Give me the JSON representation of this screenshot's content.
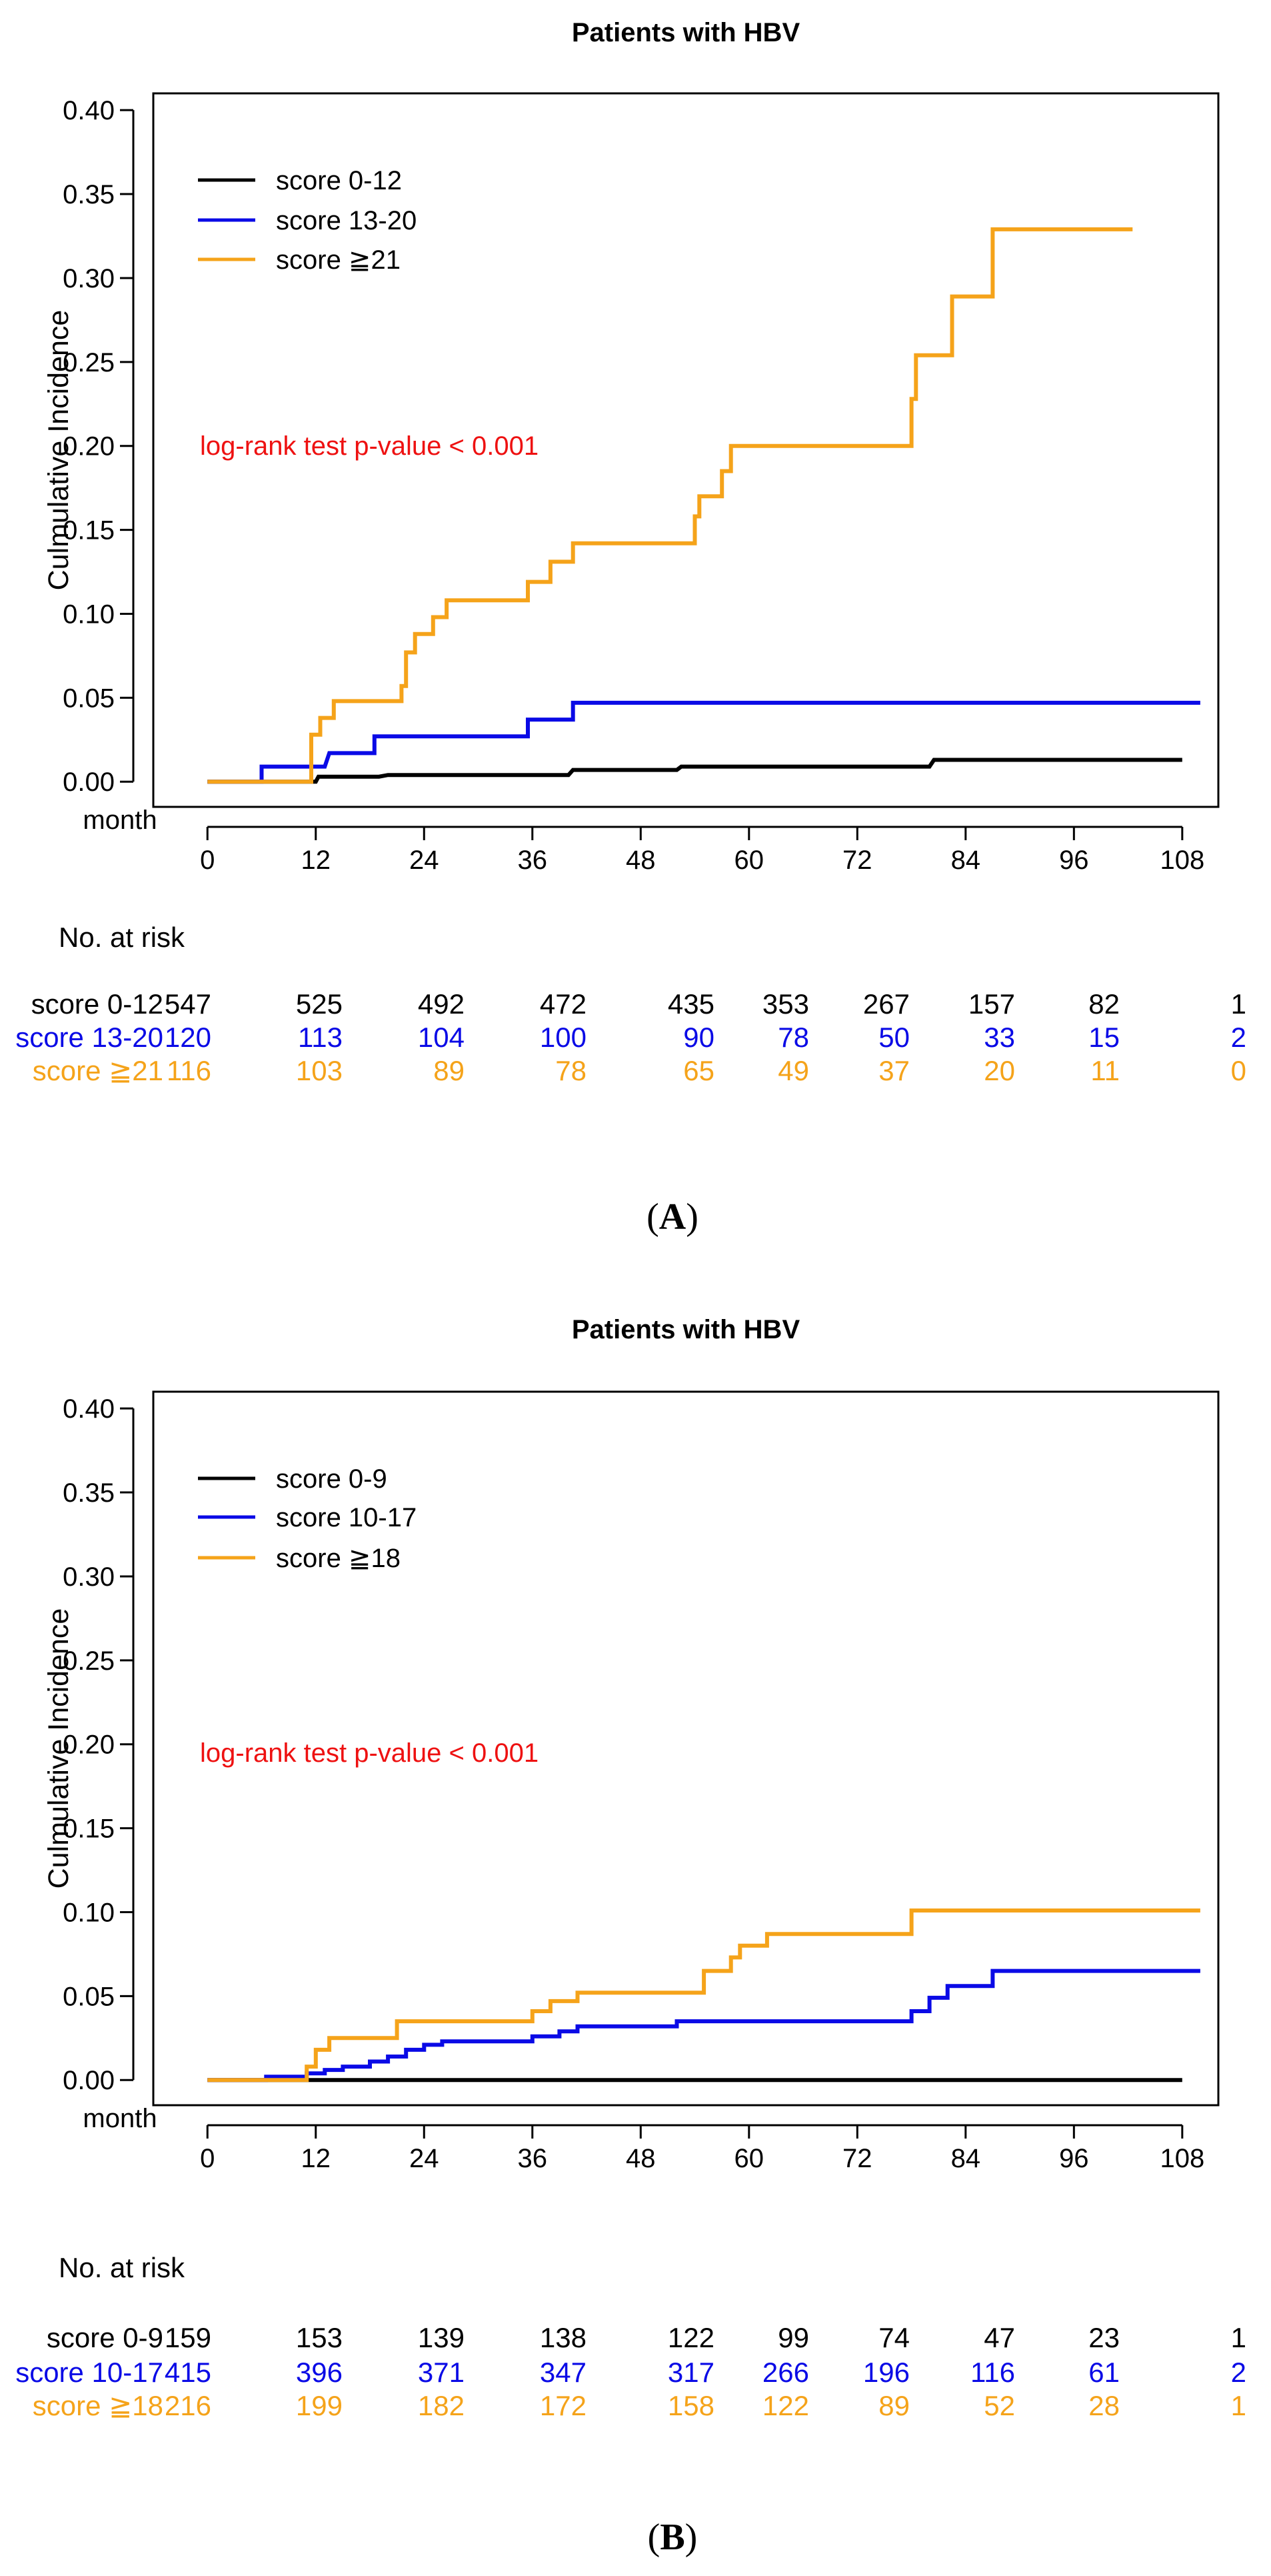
{
  "colors": {
    "black": "#000000",
    "blue": "#0a0ae6",
    "orange": "#f5a31a",
    "annotation": "#ee1111"
  },
  "chart_data": [
    {
      "type": "line",
      "panel": "A",
      "caption": [
        "(",
        "A",
        ")"
      ],
      "title": "Patients with HBV",
      "xlabel": "month",
      "ylabel": "Culmulative Incidence",
      "xlim": [
        -6,
        112
      ],
      "ylim": [
        -0.015,
        0.41
      ],
      "xticks": [
        0,
        12,
        24,
        36,
        48,
        60,
        72,
        84,
        96,
        108
      ],
      "yticks": [
        "0.00",
        "0.05",
        "0.10",
        "0.15",
        "0.20",
        "0.25",
        "0.30",
        "0.35",
        "0.40"
      ],
      "annotation": "log-rank test p-value < 0.001",
      "risk_title": "No. at risk",
      "series": [
        {
          "name": "score 0-12",
          "color": "black",
          "steps": [
            [
              0,
              0
            ],
            [
              12,
              0
            ],
            [
              12.3,
              0.003
            ],
            [
              19,
              0.003
            ],
            [
              20,
              0.004
            ],
            [
              40,
              0.004
            ],
            [
              40.5,
              0.007
            ],
            [
              52,
              0.007
            ],
            [
              52.5,
              0.009
            ],
            [
              80,
              0.009
            ],
            [
              80.5,
              0.013
            ],
            [
              108,
              0.013
            ]
          ]
        },
        {
          "name": "score 13-20",
          "color": "blue",
          "steps": [
            [
              0,
              0
            ],
            [
              6,
              0
            ],
            [
              6,
              0.009
            ],
            [
              13,
              0.009
            ],
            [
              13.5,
              0.017
            ],
            [
              18.5,
              0.017
            ],
            [
              18.5,
              0.027
            ],
            [
              35.5,
              0.027
            ],
            [
              35.5,
              0.037
            ],
            [
              40.5,
              0.037
            ],
            [
              40.5,
              0.047
            ],
            [
              110,
              0.047
            ]
          ]
        },
        {
          "name": "score ≧21",
          "color": "orange",
          "steps": [
            [
              0,
              0
            ],
            [
              11.5,
              0
            ],
            [
              11.5,
              0.028
            ],
            [
              12.5,
              0.028
            ],
            [
              12.5,
              0.038
            ],
            [
              14,
              0.038
            ],
            [
              14,
              0.048
            ],
            [
              21.5,
              0.048
            ],
            [
              21.5,
              0.057
            ],
            [
              22,
              0.057
            ],
            [
              22,
              0.077
            ],
            [
              23,
              0.077
            ],
            [
              23,
              0.088
            ],
            [
              25,
              0.088
            ],
            [
              25,
              0.098
            ],
            [
              26.5,
              0.098
            ],
            [
              26.5,
              0.108
            ],
            [
              35.5,
              0.108
            ],
            [
              35.5,
              0.119
            ],
            [
              38,
              0.119
            ],
            [
              38,
              0.131
            ],
            [
              40.5,
              0.131
            ],
            [
              40.5,
              0.142
            ],
            [
              54,
              0.142
            ],
            [
              54,
              0.158
            ],
            [
              54.5,
              0.158
            ],
            [
              54.5,
              0.17
            ],
            [
              57,
              0.17
            ],
            [
              57,
              0.185
            ],
            [
              58,
              0.185
            ],
            [
              58,
              0.2
            ],
            [
              78,
              0.2
            ],
            [
              78,
              0.228
            ],
            [
              78.5,
              0.228
            ],
            [
              78.5,
              0.254
            ],
            [
              82.5,
              0.254
            ],
            [
              82.5,
              0.289
            ],
            [
              87,
              0.289
            ],
            [
              87,
              0.329
            ],
            [
              102.5,
              0.329
            ]
          ]
        }
      ],
      "risk_table": [
        {
          "label": "score 0-12",
          "color": "black",
          "values": [
            "547",
            "525",
            "492",
            "472",
            "435",
            "353",
            "267",
            "157",
            "82",
            "1"
          ]
        },
        {
          "label": "score 13-20",
          "color": "blue",
          "values": [
            "120",
            "113",
            "104",
            "100",
            "90",
            "78",
            "50",
            "33",
            "15",
            "2"
          ]
        },
        {
          "label": "score ≧21",
          "color": "orange",
          "values": [
            "116",
            "103",
            "89",
            "78",
            "65",
            "49",
            "37",
            "20",
            "11",
            "0"
          ]
        }
      ]
    },
    {
      "type": "line",
      "panel": "B",
      "caption": [
        "(",
        "B",
        ")"
      ],
      "title": "Patients with HBV",
      "xlabel": "month",
      "ylabel": "Culmulative Incidence",
      "xlim": [
        -6,
        112
      ],
      "ylim": [
        -0.015,
        0.41
      ],
      "xticks": [
        0,
        12,
        24,
        36,
        48,
        60,
        72,
        84,
        96,
        108
      ],
      "yticks": [
        "0.00",
        "0.05",
        "0.10",
        "0.15",
        "0.20",
        "0.25",
        "0.30",
        "0.35",
        "0.40"
      ],
      "annotation": "log-rank test p-value < 0.001",
      "risk_title": "No. at risk",
      "series": [
        {
          "name": "score 0-9",
          "color": "black",
          "steps": [
            [
              0,
              0
            ],
            [
              108,
              0
            ]
          ]
        },
        {
          "name": "score 10-17",
          "color": "blue",
          "steps": [
            [
              0,
              0
            ],
            [
              6.5,
              0
            ],
            [
              6.5,
              0.002
            ],
            [
              11,
              0.002
            ],
            [
              11,
              0.004
            ],
            [
              13,
              0.004
            ],
            [
              13,
              0.006
            ],
            [
              15,
              0.006
            ],
            [
              15,
              0.008
            ],
            [
              18,
              0.008
            ],
            [
              18,
              0.011
            ],
            [
              20,
              0.011
            ],
            [
              20,
              0.014
            ],
            [
              22,
              0.014
            ],
            [
              22,
              0.018
            ],
            [
              24,
              0.018
            ],
            [
              24,
              0.021
            ],
            [
              26,
              0.021
            ],
            [
              26,
              0.023
            ],
            [
              36,
              0.023
            ],
            [
              36,
              0.026
            ],
            [
              39,
              0.026
            ],
            [
              39,
              0.029
            ],
            [
              41,
              0.029
            ],
            [
              41,
              0.032
            ],
            [
              52,
              0.032
            ],
            [
              52,
              0.035
            ],
            [
              78,
              0.035
            ],
            [
              78,
              0.041
            ],
            [
              80,
              0.041
            ],
            [
              80,
              0.049
            ],
            [
              82,
              0.049
            ],
            [
              82,
              0.056
            ],
            [
              87,
              0.056
            ],
            [
              87,
              0.065
            ],
            [
              110,
              0.065
            ]
          ]
        },
        {
          "name": "score ≧18",
          "color": "orange",
          "steps": [
            [
              0,
              0
            ],
            [
              11,
              0
            ],
            [
              11,
              0.008
            ],
            [
              12,
              0.008
            ],
            [
              12,
              0.018
            ],
            [
              13.5,
              0.018
            ],
            [
              13.5,
              0.025
            ],
            [
              21,
              0.025
            ],
            [
              21,
              0.035
            ],
            [
              36,
              0.035
            ],
            [
              36,
              0.041
            ],
            [
              38,
              0.041
            ],
            [
              38,
              0.047
            ],
            [
              41,
              0.047
            ],
            [
              41,
              0.052
            ],
            [
              55,
              0.052
            ],
            [
              55,
              0.065
            ],
            [
              58,
              0.065
            ],
            [
              58,
              0.073
            ],
            [
              59,
              0.073
            ],
            [
              59,
              0.08
            ],
            [
              62,
              0.08
            ],
            [
              62,
              0.087
            ],
            [
              78,
              0.087
            ],
            [
              78,
              0.101
            ],
            [
              110,
              0.101
            ]
          ]
        }
      ],
      "risk_table": [
        {
          "label": "score 0-9",
          "color": "black",
          "values": [
            "159",
            "153",
            "139",
            "138",
            "122",
            "99",
            "74",
            "47",
            "23",
            "1"
          ]
        },
        {
          "label": "score 10-17",
          "color": "blue",
          "values": [
            "415",
            "396",
            "371",
            "347",
            "317",
            "266",
            "196",
            "116",
            "61",
            "2"
          ]
        },
        {
          "label": "score ≧18",
          "color": "orange",
          "values": [
            "216",
            "199",
            "182",
            "172",
            "158",
            "122",
            "89",
            "52",
            "28",
            "1"
          ]
        }
      ]
    }
  ]
}
